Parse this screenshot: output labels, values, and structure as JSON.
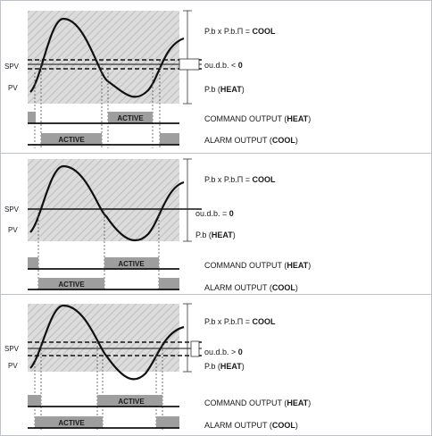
{
  "panels": [
    {
      "variant": "negative",
      "spv_label": "SPV",
      "pv_label": "PV",
      "cool_formula": "P.b x P.b.Π = ",
      "cool_word": "COOL",
      "odb_prefix": "ou.d.b. < ",
      "odb_value": "0",
      "heat_prefix": "P.b (",
      "heat_word": "HEAT",
      "heat_suffix": ")",
      "command_prefix": "COMMAND OUTPUT (",
      "command_word": "HEAT",
      "command_suffix": ")",
      "alarm_prefix": "ALARM OUTPUT (",
      "alarm_word": "COOL",
      "alarm_suffix": ")",
      "command_active_label": "ACTIVE",
      "alarm_active_label": "ACTIVE"
    },
    {
      "variant": "zero",
      "spv_label": "SPV",
      "pv_label": "PV",
      "cool_formula": "P.b x P.b.Π = ",
      "cool_word": "COOL",
      "odb_prefix": "ou.d.b. = ",
      "odb_value": "0",
      "heat_prefix": "P.b (",
      "heat_word": "HEAT",
      "heat_suffix": ")",
      "command_prefix": "COMMAND OUTPUT (",
      "command_word": "HEAT",
      "command_suffix": ")",
      "alarm_prefix": "ALARM OUTPUT (",
      "alarm_word": "COOL",
      "alarm_suffix": ")",
      "command_active_label": "ACTIVE",
      "alarm_active_label": "ACTIVE"
    },
    {
      "variant": "positive",
      "spv_label": "SPV",
      "pv_label": "PV",
      "cool_formula": "P.b x P.b.Π = ",
      "cool_word": "COOL",
      "odb_prefix": "ou.d.b. > ",
      "odb_value": "0",
      "heat_prefix": "P.b (",
      "heat_word": "HEAT",
      "heat_suffix": ")",
      "command_prefix": "COMMAND OUTPUT (",
      "command_word": "HEAT",
      "command_suffix": ")",
      "alarm_prefix": "ALARM OUTPUT (",
      "alarm_word": "COOL",
      "alarm_suffix": ")",
      "command_active_label": "ACTIVE",
      "alarm_active_label": "ACTIVE"
    }
  ],
  "colors": {
    "hatch_bg": "#dcdcdc",
    "hatch_line": "#bdbdbd",
    "active_block": "#9e9e9e",
    "line": "#111111",
    "border": "#bfc3c7"
  }
}
